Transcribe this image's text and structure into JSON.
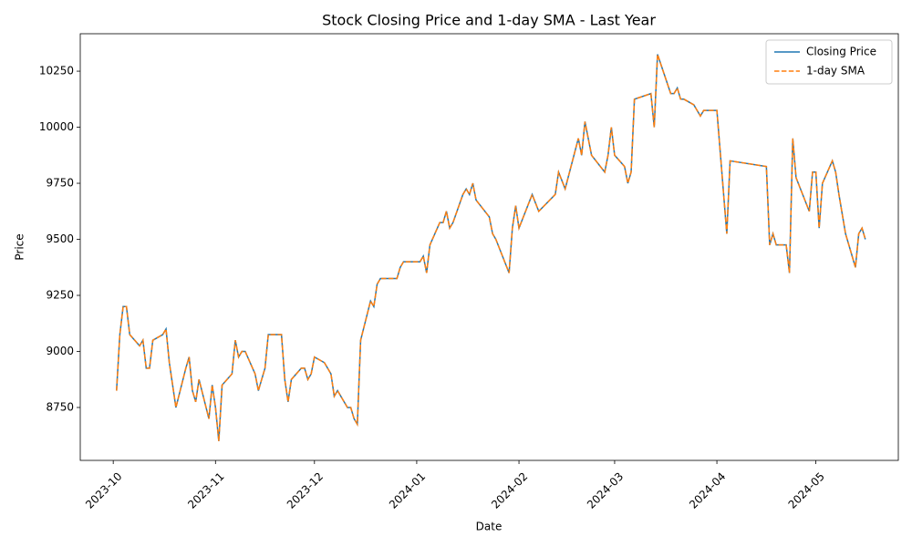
{
  "chart_data": {
    "type": "line",
    "title": "Stock Closing Price and 1-day SMA - Last Year",
    "xlabel": "Date",
    "ylabel": "Price",
    "x": [
      "2023-10-02",
      "2023-10-03",
      "2023-10-04",
      "2023-10-05",
      "2023-10-06",
      "2023-10-09",
      "2023-10-10",
      "2023-10-11",
      "2023-10-12",
      "2023-10-13",
      "2023-10-16",
      "2023-10-17",
      "2023-10-18",
      "2023-10-19",
      "2023-10-20",
      "2023-10-23",
      "2023-10-24",
      "2023-10-25",
      "2023-10-26",
      "2023-10-27",
      "2023-10-30",
      "2023-10-31",
      "2023-11-01",
      "2023-11-02",
      "2023-11-03",
      "2023-11-06",
      "2023-11-07",
      "2023-11-08",
      "2023-11-09",
      "2023-11-10",
      "2023-11-13",
      "2023-11-14",
      "2023-11-15",
      "2023-11-16",
      "2023-11-17",
      "2023-11-20",
      "2023-11-21",
      "2023-11-22",
      "2023-11-23",
      "2023-11-24",
      "2023-11-27",
      "2023-11-28",
      "2023-11-29",
      "2023-11-30",
      "2023-12-01",
      "2023-12-04",
      "2023-12-05",
      "2023-12-06",
      "2023-12-07",
      "2023-12-08",
      "2023-12-11",
      "2023-12-12",
      "2023-12-13",
      "2023-12-14",
      "2023-12-15",
      "2023-12-18",
      "2023-12-19",
      "2023-12-20",
      "2023-12-21",
      "2023-12-22",
      "2023-12-26",
      "2023-12-27",
      "2023-12-28",
      "2023-12-29",
      "2024-01-02",
      "2024-01-03",
      "2024-01-04",
      "2024-01-05",
      "2024-01-08",
      "2024-01-09",
      "2024-01-10",
      "2024-01-11",
      "2024-01-12",
      "2024-01-15",
      "2024-01-16",
      "2024-01-17",
      "2024-01-18",
      "2024-01-19",
      "2024-01-23",
      "2024-01-24",
      "2024-01-25",
      "2024-01-29",
      "2024-01-30",
      "2024-01-31",
      "2024-02-01",
      "2024-02-05",
      "2024-02-07",
      "2024-02-12",
      "2024-02-13",
      "2024-02-15",
      "2024-02-19",
      "2024-02-20",
      "2024-02-21",
      "2024-02-23",
      "2024-02-27",
      "2024-02-28",
      "2024-02-29",
      "2024-03-01",
      "2024-03-04",
      "2024-03-05",
      "2024-03-06",
      "2024-03-07",
      "2024-03-12",
      "2024-03-13",
      "2024-03-14",
      "2024-03-18",
      "2024-03-19",
      "2024-03-20",
      "2024-03-21",
      "2024-03-22",
      "2024-03-25",
      "2024-03-26",
      "2024-03-27",
      "2024-03-28",
      "2024-04-01",
      "2024-04-04",
      "2024-04-05",
      "2024-04-16",
      "2024-04-17",
      "2024-04-18",
      "2024-04-19",
      "2024-04-22",
      "2024-04-23",
      "2024-04-24",
      "2024-04-25",
      "2024-04-29",
      "2024-04-30",
      "2024-05-01",
      "2024-05-02",
      "2024-05-03",
      "2024-05-06",
      "2024-05-07",
      "2024-05-08",
      "2024-05-10",
      "2024-05-13",
      "2024-05-14",
      "2024-05-15",
      "2024-05-16"
    ],
    "series": [
      {
        "name": "Closing Price",
        "color": "#1f77b4",
        "dash": "solid",
        "values": [
          8825,
          9075,
          9200,
          9200,
          9075,
          9025,
          9050,
          8925,
          8925,
          9050,
          9075,
          9100,
          8950,
          8850,
          8750,
          8925,
          8975,
          8825,
          8775,
          8875,
          8700,
          8850,
          8750,
          8600,
          8850,
          8900,
          9050,
          8975,
          9000,
          9000,
          8900,
          8825,
          8875,
          8925,
          9075,
          9075,
          9075,
          8875,
          8775,
          8875,
          8925,
          8925,
          8875,
          8900,
          8975,
          8950,
          8925,
          8900,
          8800,
          8825,
          8750,
          8750,
          8700,
          8675,
          9050,
          9225,
          9200,
          9300,
          9325,
          9325,
          9325,
          9375,
          9400,
          9400,
          9400,
          9425,
          9350,
          9475,
          9575,
          9575,
          9625,
          9550,
          9575,
          9700,
          9725,
          9700,
          9750,
          9675,
          9600,
          9525,
          9500,
          9350,
          9550,
          9650,
          9550,
          9700,
          9625,
          9700,
          9800,
          9725,
          9950,
          9875,
          10025,
          9875,
          9800,
          9875,
          10000,
          9875,
          9825,
          9750,
          9800,
          10125,
          10150,
          10000,
          10325,
          10150,
          10150,
          10175,
          10125,
          10125,
          10100,
          10075,
          10050,
          10075,
          10075,
          9525,
          9850,
          9825,
          9475,
          9525,
          9475,
          9475,
          9350,
          9950,
          9775,
          9625,
          9800,
          9800,
          9550,
          9750,
          9850,
          9800,
          9700,
          9525,
          9375,
          9525,
          9550,
          9500
        ]
      },
      {
        "name": "1-day SMA",
        "color": "#ff7f0e",
        "dash": "dashed",
        "values": [
          8825,
          9075,
          9200,
          9200,
          9075,
          9025,
          9050,
          8925,
          8925,
          9050,
          9075,
          9100,
          8950,
          8850,
          8750,
          8925,
          8975,
          8825,
          8775,
          8875,
          8700,
          8850,
          8750,
          8600,
          8850,
          8900,
          9050,
          8975,
          9000,
          9000,
          8900,
          8825,
          8875,
          8925,
          9075,
          9075,
          9075,
          8875,
          8775,
          8875,
          8925,
          8925,
          8875,
          8900,
          8975,
          8950,
          8925,
          8900,
          8800,
          8825,
          8750,
          8750,
          8700,
          8675,
          9050,
          9225,
          9200,
          9300,
          9325,
          9325,
          9325,
          9375,
          9400,
          9400,
          9400,
          9425,
          9350,
          9475,
          9575,
          9575,
          9625,
          9550,
          9575,
          9700,
          9725,
          9700,
          9750,
          9675,
          9600,
          9525,
          9500,
          9350,
          9550,
          9650,
          9550,
          9700,
          9625,
          9700,
          9800,
          9725,
          9950,
          9875,
          10025,
          9875,
          9800,
          9875,
          10000,
          9875,
          9825,
          9750,
          9800,
          10125,
          10150,
          10000,
          10325,
          10150,
          10150,
          10175,
          10125,
          10125,
          10100,
          10075,
          10050,
          10075,
          10075,
          9525,
          9850,
          9825,
          9475,
          9525,
          9475,
          9475,
          9350,
          9950,
          9775,
          9625,
          9800,
          9800,
          9550,
          9750,
          9850,
          9800,
          9700,
          9525,
          9375,
          9525,
          9550,
          9500
        ]
      }
    ],
    "xlim": [
      "2023-09-21",
      "2024-05-26"
    ],
    "xticks": [
      {
        "value": "2023-10-01",
        "label": "2023-10"
      },
      {
        "value": "2023-11-01",
        "label": "2023-11"
      },
      {
        "value": "2023-12-01",
        "label": "2023-12"
      },
      {
        "value": "2024-01-01",
        "label": "2024-01"
      },
      {
        "value": "2024-02-01",
        "label": "2024-02"
      },
      {
        "value": "2024-03-01",
        "label": "2024-03"
      },
      {
        "value": "2024-04-01",
        "label": "2024-04"
      },
      {
        "value": "2024-05-01",
        "label": "2024-05"
      }
    ],
    "ylim": [
      8514,
      10417
    ],
    "yticks": [
      8750,
      9000,
      9250,
      9500,
      9750,
      10000,
      10250
    ],
    "grid": false,
    "legend": "upper right"
  }
}
